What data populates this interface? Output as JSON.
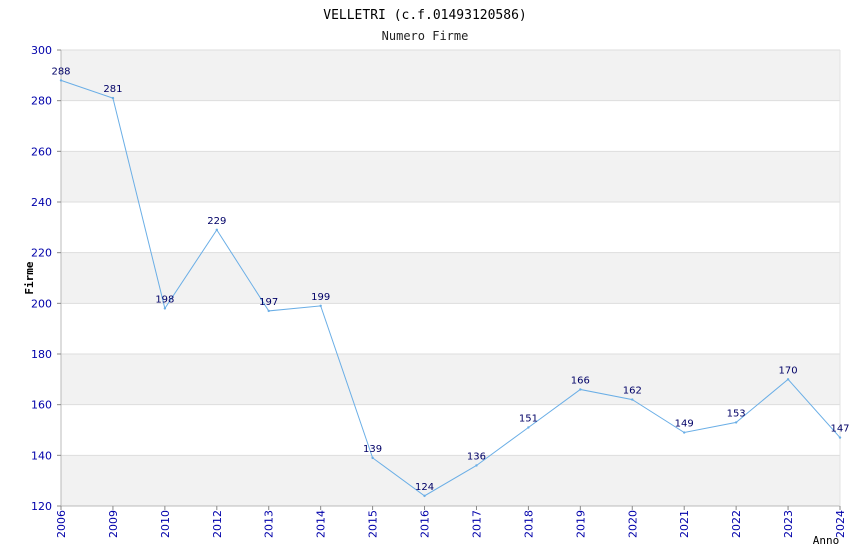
{
  "chart_data": {
    "type": "line",
    "title": "VELLETRI (c.f.01493120586)",
    "subtitle": "Numero Firme",
    "xlabel": "Anno",
    "ylabel": "Firme",
    "categories": [
      "2006",
      "2009",
      "2010",
      "2012",
      "2013",
      "2014",
      "2015",
      "2016",
      "2017",
      "2018",
      "2019",
      "2020",
      "2021",
      "2022",
      "2023",
      "2024"
    ],
    "values": [
      288,
      281,
      198,
      229,
      197,
      199,
      139,
      124,
      136,
      151,
      166,
      162,
      149,
      153,
      170,
      147
    ],
    "ylim": [
      120,
      300
    ],
    "yticks": [
      120,
      140,
      160,
      180,
      200,
      220,
      240,
      260,
      280,
      300
    ],
    "grid": true,
    "colors": {
      "line": "#6aaee6",
      "band": "#f2f2f2",
      "grid": "#dddddd",
      "tick": "#0000aa",
      "label": "#000066"
    }
  }
}
